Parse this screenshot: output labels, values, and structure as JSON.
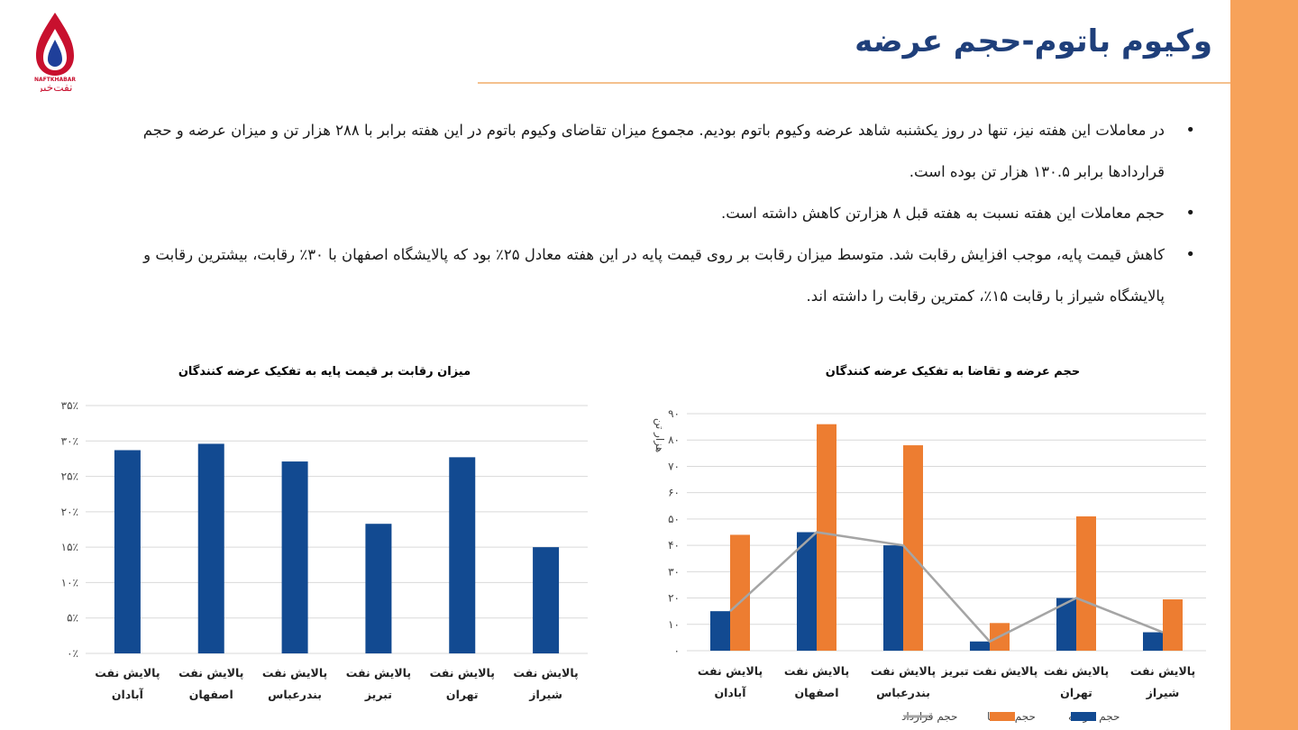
{
  "slide": {
    "title": "وکیوم باتوم-حجم عرضه",
    "logo_text": {
      "latin": "NAFTKHABAR",
      "persian": "نفت‌خبر"
    },
    "colors": {
      "accent_bar": "#f7a25a",
      "title": "#1f3f7a",
      "rule": "#f4c18e"
    }
  },
  "bullets": [
    "در معاملات این هفته نیز، تنها در روز یکشنبه شاهد عرضه وکیوم باتوم بودیم. مجموع میزان تقاضای وکیوم باتوم در این هفته برابر با ۲۸۸ هزار تن و میزان عرضه و حجم قراردادها برابر ۱۳۰.۵ هزار تن بوده است.",
    "حجم معاملات این هفته نسبت به هفته قبل ۸ هزارتن کاهش داشته است.",
    "کاهش قیمت پایه، موجب افزایش رقابت شد. متوسط میزان رقابت بر روی قیمت پایه در این هفته معادل ۲۵٪ بود که پالایشگاه اصفهان با ۳۰٪ رقابت، بیشترین رقابت و پالایشگاه شیراز با رقابت ۱۵٪، کمترین رقابت را داشته اند."
  ],
  "chart_data": [
    {
      "type": "bar",
      "title": "میزان رقابت بر قیمت پایه به تفکیک عرضه کنندگان",
      "categories": [
        [
          "پالایش نفت",
          "آبادان"
        ],
        [
          "پالایش نفت",
          "اصفهان"
        ],
        [
          "پالایش نفت",
          "بندرعباس"
        ],
        [
          "پالایش نفت",
          "تبریز"
        ],
        [
          "پالایش نفت",
          "تهران"
        ],
        [
          "پالایش نفت",
          "شیراز"
        ]
      ],
      "values": [
        28.7,
        29.6,
        27.1,
        18.3,
        27.7,
        15.0
      ],
      "ylim": [
        0,
        35
      ],
      "yticks": [
        0,
        5,
        10,
        15,
        20,
        25,
        30,
        35
      ],
      "ytick_labels": [
        "۰٪",
        "۵٪",
        "۱۰٪",
        "۱۵٪",
        "۲۰٪",
        "۲۵٪",
        "۳۰٪",
        "۳۵٪"
      ],
      "grid": true,
      "colors": {
        "bar": "#124a91"
      }
    },
    {
      "type": "bar",
      "title": "حجم عرضه و تقاضا به تفکیک عرضه کنندگان",
      "ylabel": "هزار تن",
      "categories": [
        [
          "پالایش نفت",
          "آبادان"
        ],
        [
          "پالایش نفت",
          "اصفهان"
        ],
        [
          "پالایش نفت",
          "بندرعباس"
        ],
        [
          "پالایش نفت تبریز"
        ],
        [
          "پالایش نفت",
          "تهران"
        ],
        [
          "پالایش نفت",
          "شیراز"
        ]
      ],
      "series": [
        {
          "name": "حجم عرضه",
          "type": "bar",
          "values": [
            15,
            45,
            40,
            3.5,
            20,
            7
          ],
          "color": "#124a91"
        },
        {
          "name": "حجم تقاضا",
          "type": "bar",
          "values": [
            44,
            86,
            78,
            10.5,
            51,
            19.5
          ],
          "color": "#ed7d31"
        },
        {
          "name": "حجم قرارداد",
          "type": "line",
          "values": [
            15,
            45,
            40,
            3.5,
            20,
            7
          ],
          "color": "#a5a5a5"
        }
      ],
      "ylim": [
        0,
        90
      ],
      "yticks": [
        0,
        10,
        20,
        30,
        40,
        50,
        60,
        70,
        80,
        90
      ],
      "ytick_labels": [
        "۰",
        "۱۰",
        "۲۰",
        "۳۰",
        "۴۰",
        "۵۰",
        "۶۰",
        "۷۰",
        "۸۰",
        "۹۰"
      ],
      "grid": true,
      "legend": "bottom"
    }
  ]
}
